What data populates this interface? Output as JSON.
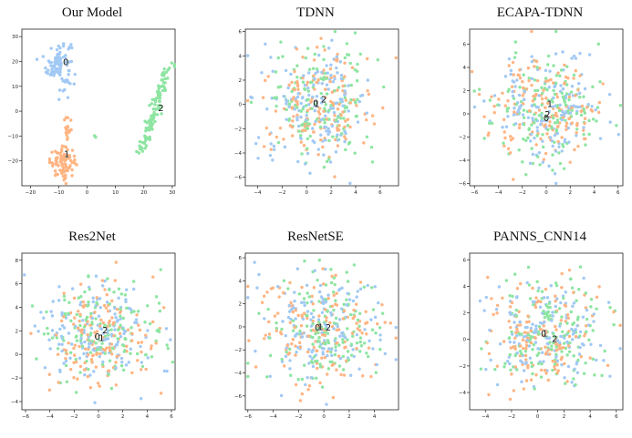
{
  "chart_data": [
    {
      "type": "scatter",
      "title": "Our Model",
      "xlim": [
        -23,
        31
      ],
      "ylim": [
        -30,
        33
      ],
      "xticks": [
        -20,
        -10,
        0,
        10,
        20,
        30
      ],
      "yticks": [
        -20,
        -10,
        0,
        10,
        20,
        30
      ],
      "xtick_labels": [
        "−20",
        "−10",
        "0",
        "10",
        "20",
        "30"
      ],
      "ytick_labels": [
        "−20",
        "−10",
        "0",
        "10",
        "20",
        "30"
      ],
      "series": [
        {
          "label": "0",
          "color": "#a1c9f4",
          "clusters": [
            {
              "cx": -10,
              "cy": 19,
              "sx": 2.2,
              "sy": 5,
              "n": 95
            }
          ],
          "label_pos": [
            -7.5,
            20
          ]
        },
        {
          "label": "1",
          "color": "#ffb482",
          "clusters": [
            {
              "cx": -8.5,
              "cy": -20.5,
              "sx": 2.3,
              "sy": 2.8,
              "n": 95
            },
            {
              "cx": -6.5,
              "cy": -8,
              "sx": 0.8,
              "sy": 3,
              "n": 18
            }
          ],
          "label_pos": [
            -7.2,
            -17
          ]
        },
        {
          "label": "2",
          "color": "#8de5a1",
          "clusters": [
            {
              "type": "line",
              "x1": 19,
              "y1": -17,
              "x2": 29,
              "y2": 19,
              "s": 1.0,
              "n": 110
            },
            {
              "cx": 3,
              "cy": -10,
              "sx": 0.5,
              "sy": 0.3,
              "n": 3
            }
          ],
          "label_pos": [
            26,
            1.5
          ]
        }
      ]
    },
    {
      "type": "scatter",
      "title": "TDNN",
      "xlim": [
        -5,
        7.5
      ],
      "ylim": [
        -6.7,
        6.2
      ],
      "xticks": [
        -4,
        -2,
        0,
        2,
        4,
        6
      ],
      "yticks": [
        -6,
        -4,
        -2,
        0,
        2,
        4,
        6
      ],
      "xtick_labels": [
        "−4",
        "−2",
        "0",
        "2",
        "4",
        "6"
      ],
      "ytick_labels": [
        "−6",
        "−4",
        "−2",
        "0",
        "2",
        "4",
        "6"
      ],
      "series": [
        {
          "label": "0",
          "color": "#a1c9f4",
          "clusters": [
            {
              "cx": 0.8,
              "cy": -0.1,
              "sx": 2.2,
              "sy": 2.3,
              "n": 150
            }
          ],
          "label_pos": [
            0.75,
            0.15
          ]
        },
        {
          "label": "1",
          "color": "#ffb482",
          "clusters": [
            {
              "cx": 0.8,
              "cy": 0.0,
              "sx": 2.2,
              "sy": 2.3,
              "n": 150
            }
          ],
          "label_pos": [
            0.85,
            0.1
          ]
        },
        {
          "label": "2",
          "color": "#8de5a1",
          "clusters": [
            {
              "cx": 1.0,
              "cy": 0.1,
              "sx": 2.2,
              "sy": 2.3,
              "n": 150
            }
          ],
          "label_pos": [
            1.4,
            0.45
          ]
        }
      ]
    },
    {
      "type": "scatter",
      "title": "ECAPA-TDNN",
      "xlim": [
        -6.4,
        6.4
      ],
      "ylim": [
        -6.2,
        7.3
      ],
      "xticks": [
        -6,
        -4,
        -2,
        0,
        2,
        4,
        6
      ],
      "yticks": [
        -6,
        -4,
        -2,
        0,
        2,
        4,
        6
      ],
      "xtick_labels": [
        "−6",
        "−4",
        "−2",
        "0",
        "2",
        "4",
        "6"
      ],
      "ytick_labels": [
        "−6",
        "−4",
        "−2",
        "0",
        "2",
        "4",
        "6"
      ],
      "series": [
        {
          "label": "0",
          "color": "#a1c9f4",
          "clusters": [
            {
              "cx": 0.2,
              "cy": 0.5,
              "sx": 2.3,
              "sy": 2.3,
              "n": 150
            }
          ],
          "label_pos": [
            0.0,
            -0.3
          ]
        },
        {
          "label": "1",
          "color": "#ffb482",
          "clusters": [
            {
              "cx": 0.0,
              "cy": 0.5,
              "sx": 2.3,
              "sy": 2.3,
              "n": 150
            }
          ],
          "label_pos": [
            0.3,
            0.9
          ]
        },
        {
          "label": "2",
          "color": "#8de5a1",
          "clusters": [
            {
              "cx": 0.3,
              "cy": 0.4,
              "sx": 2.3,
              "sy": 2.3,
              "n": 150
            }
          ],
          "label_pos": [
            0.1,
            0.0
          ]
        }
      ]
    },
    {
      "type": "scatter",
      "title": "Res2Net",
      "xlim": [
        -6.3,
        6.3
      ],
      "ylim": [
        -4.7,
        8.6
      ],
      "xticks": [
        -6,
        -4,
        -2,
        0,
        2,
        4,
        6
      ],
      "yticks": [
        -4,
        -2,
        0,
        2,
        4,
        6,
        8
      ],
      "xtick_labels": [
        "−6",
        "−4",
        "−2",
        "0",
        "2",
        "4",
        "6"
      ],
      "ytick_labels": [
        "−4",
        "−2",
        "0",
        "2",
        "4",
        "6",
        "8"
      ],
      "series": [
        {
          "label": "0",
          "color": "#a1c9f4",
          "clusters": [
            {
              "cx": 0.0,
              "cy": 1.8,
              "sx": 2.4,
              "sy": 2.3,
              "n": 150
            }
          ],
          "label_pos": [
            -0.1,
            1.55
          ]
        },
        {
          "label": "1",
          "color": "#ffb482",
          "clusters": [
            {
              "cx": 0.1,
              "cy": 1.7,
              "sx": 2.4,
              "sy": 2.3,
              "n": 150
            }
          ],
          "label_pos": [
            0.25,
            1.45
          ]
        },
        {
          "label": "2",
          "color": "#8de5a1",
          "clusters": [
            {
              "cx": 0.2,
              "cy": 1.9,
              "sx": 2.4,
              "sy": 2.3,
              "n": 150
            }
          ],
          "label_pos": [
            0.55,
            2.1
          ]
        }
      ]
    },
    {
      "type": "scatter",
      "title": "ResNetSE",
      "xlim": [
        -6.2,
        5.9
      ],
      "ylim": [
        -7.2,
        6.4
      ],
      "xticks": [
        -6,
        -4,
        -2,
        0,
        2,
        4
      ],
      "yticks": [
        -6,
        -4,
        -2,
        0,
        2,
        4,
        6
      ],
      "xtick_labels": [
        "−6",
        "−4",
        "−2",
        "0",
        "2",
        "4"
      ],
      "ytick_labels": [
        "−6",
        "−4",
        "−2",
        "0",
        "2",
        "4",
        "6"
      ],
      "series": [
        {
          "label": "0",
          "color": "#a1c9f4",
          "clusters": [
            {
              "cx": -0.3,
              "cy": 0.0,
              "sx": 2.3,
              "sy": 2.4,
              "n": 150
            }
          ],
          "label_pos": [
            -0.5,
            0.0
          ]
        },
        {
          "label": "1",
          "color": "#ffb482",
          "clusters": [
            {
              "cx": -0.2,
              "cy": 0.0,
              "sx": 2.3,
              "sy": 2.4,
              "n": 150
            }
          ],
          "label_pos": [
            -0.25,
            0.05
          ]
        },
        {
          "label": "2",
          "color": "#8de5a1",
          "clusters": [
            {
              "cx": 0.0,
              "cy": -0.1,
              "sx": 2.3,
              "sy": 2.4,
              "n": 150
            }
          ],
          "label_pos": [
            0.35,
            0.0
          ]
        }
      ]
    },
    {
      "type": "scatter",
      "title": "PANNS_CNN14",
      "xlim": [
        -5.2,
        6.5
      ],
      "ylim": [
        -5.3,
        6.5
      ],
      "xticks": [
        -4,
        -2,
        0,
        2,
        4,
        6
      ],
      "yticks": [
        -4,
        -2,
        0,
        2,
        4,
        6
      ],
      "xtick_labels": [
        "−4",
        "−2",
        "0",
        "2",
        "4",
        "6"
      ],
      "ytick_labels": [
        "−4",
        "−2",
        "0",
        "2",
        "4",
        "6"
      ],
      "series": [
        {
          "label": "0",
          "color": "#a1c9f4",
          "clusters": [
            {
              "cx": 0.6,
              "cy": 0.5,
              "sx": 2.1,
              "sy": 2.1,
              "n": 150
            }
          ],
          "label_pos": [
            0.45,
            0.45
          ]
        },
        {
          "label": "1",
          "color": "#ffb482",
          "clusters": [
            {
              "cx": 0.4,
              "cy": 0.3,
              "sx": 2.1,
              "sy": 2.1,
              "n": 150
            }
          ],
          "label_pos": [
            0.55,
            0.5
          ]
        },
        {
          "label": "2",
          "color": "#8de5a1",
          "clusters": [
            {
              "cx": 0.8,
              "cy": 0.2,
              "sx": 2.1,
              "sy": 2.1,
              "n": 150
            }
          ],
          "label_pos": [
            1.3,
            0.1
          ]
        }
      ]
    }
  ]
}
